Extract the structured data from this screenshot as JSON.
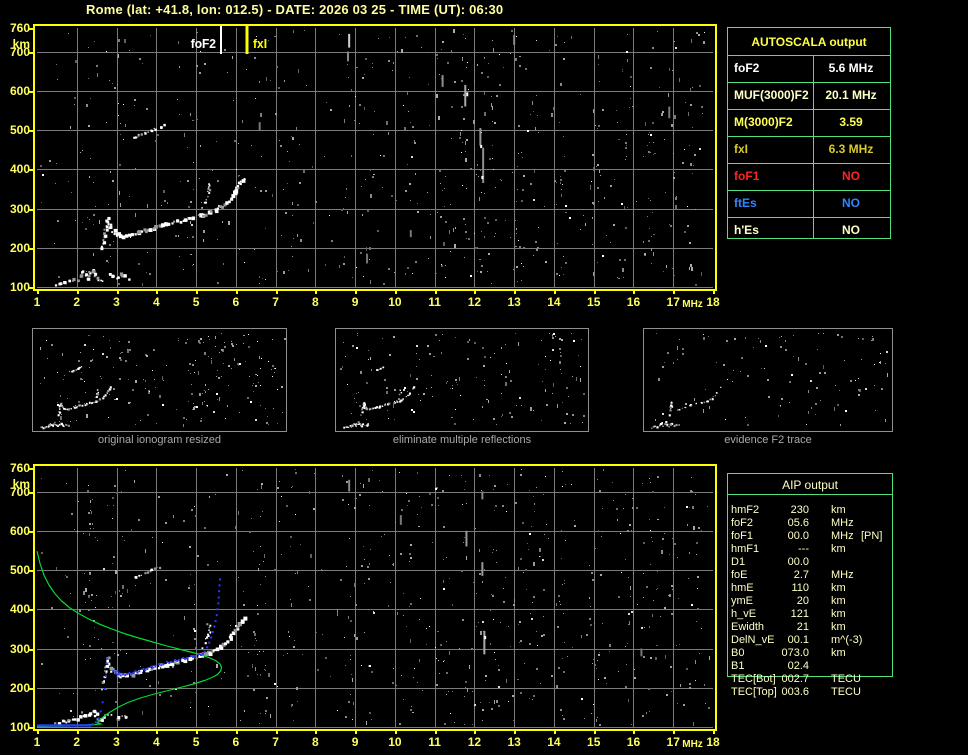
{
  "title": "Rome (lat: +41.8, lon: 012.5) - DATE: 2026 03 25 - TIME (UT): 06:30",
  "colors": {
    "axis_yellow": "#ffff00",
    "label_yellow": "#ffff60",
    "title_yellow": "#ffffa0",
    "bright_yellow": "#ffff44",
    "grid_gray": "#7b7b7b",
    "table_green": "#52e07c",
    "aip_text": "#ffffc4",
    "caption_gray": "#a9a9a9",
    "trace_blue": "#2a3bff",
    "profile_green": "#00dc30",
    "red": "#ff2222",
    "ftes_blue": "#2e86ff",
    "white": "#ffffff",
    "pale_yellow": "#ffffc8",
    "gold_yellow": "#d8ca28"
  },
  "axes": {
    "x_ticks": [
      1,
      2,
      3,
      4,
      5,
      6,
      7,
      8,
      9,
      10,
      11,
      12,
      13,
      14,
      15,
      16,
      17,
      18
    ],
    "x_unit": "MHz",
    "y_ticks": [
      760,
      700,
      600,
      500,
      400,
      300,
      200,
      100
    ],
    "y_unit": "km"
  },
  "top_plot": {
    "markers": [
      {
        "label": "foF2",
        "f": 5.63,
        "color": "#ffffff",
        "width": 2,
        "label_side": "left"
      },
      {
        "label": "fxI",
        "f": 6.28,
        "color": "#ffff00",
        "width": 3,
        "label_side": "right"
      }
    ]
  },
  "thumbnails": [
    {
      "caption": "original ionogram resized"
    },
    {
      "caption": "eliminate multiple reflections"
    },
    {
      "caption": "evidence F2 trace"
    }
  ],
  "autoscala": {
    "header": "AUTOSCALA output",
    "rows": [
      {
        "label": "foF2",
        "value": "5.6 MHz",
        "color": "#ffffff"
      },
      {
        "label": "MUF(3000)F2",
        "value": "20.1 MHz",
        "color": "#ffffc8"
      },
      {
        "label": "M(3000)F2",
        "value": "3.59",
        "color": "#ffff55"
      },
      {
        "label": "fxI",
        "value": "6.3 MHz",
        "color": "#d8ca28"
      },
      {
        "label": "foF1",
        "value": "NO",
        "color": "#ff2222"
      },
      {
        "label": "ftEs",
        "value": "NO",
        "color": "#2e86ff"
      },
      {
        "label": "h'Es",
        "value": "NO",
        "color": "#ffffc8"
      }
    ]
  },
  "aip": {
    "header": "AIP output",
    "rows": [
      {
        "label": "hmF2",
        "value": "230",
        "unit": "km",
        "extra": ""
      },
      {
        "label": "foF2",
        "value": "05.6",
        "unit": "MHz",
        "extra": ""
      },
      {
        "label": "foF1",
        "value": "00.0",
        "unit": "MHz",
        "extra": "[PN]"
      },
      {
        "label": "hmF1",
        "value": "---",
        "unit": "km",
        "extra": ""
      },
      {
        "label": "D1",
        "value": "00.0",
        "unit": "",
        "extra": ""
      },
      {
        "label": "foE",
        "value": "2.7",
        "unit": "MHz",
        "extra": ""
      },
      {
        "label": "hmE",
        "value": "110",
        "unit": "km",
        "extra": ""
      },
      {
        "label": "ymE",
        "value": "20",
        "unit": "km",
        "extra": ""
      },
      {
        "label": "h_vE",
        "value": "121",
        "unit": "km",
        "extra": ""
      },
      {
        "label": "Ewidth",
        "value": "21",
        "unit": "km",
        "extra": ""
      },
      {
        "label": "DelN_vE",
        "value": "00.1",
        "unit": "m^(-3)",
        "extra": ""
      },
      {
        "label": "B0",
        "value": "073.0",
        "unit": "km",
        "extra": ""
      },
      {
        "label": "B1",
        "value": "02.4",
        "unit": "",
        "extra": ""
      },
      {
        "label": "TEC[Bot]",
        "value": "002.7",
        "unit": "TECU",
        "extra": ""
      },
      {
        "label": "TEC[Top]",
        "value": "003.6",
        "unit": "TECU",
        "extra": ""
      }
    ]
  },
  "chart_data": {
    "type": "scatter",
    "title": "Ionogram, Rome, 2026-03-25 06:30 UT",
    "xlabel": "MHz",
    "ylabel": "km",
    "xlim": [
      1,
      18
    ],
    "ylim": [
      100,
      760
    ],
    "grid": true,
    "markers": {
      "foF2_MHz": 5.6,
      "fxI_MHz": 6.3
    },
    "traces": {
      "e_trace": [
        [
          1.45,
          107
        ],
        [
          1.55,
          110
        ],
        [
          1.65,
          113
        ],
        [
          1.78,
          115
        ],
        [
          1.9,
          116
        ],
        [
          2.0,
          118
        ],
        [
          2.05,
          128
        ],
        [
          2.1,
          138
        ],
        [
          2.18,
          130
        ],
        [
          2.25,
          122
        ],
        [
          2.3,
          135
        ],
        [
          2.38,
          142
        ],
        [
          2.45,
          130
        ],
        [
          2.5,
          120
        ],
        [
          2.6,
          118
        ],
        [
          2.7,
          128
        ],
        [
          2.78,
          132
        ],
        [
          2.9,
          126
        ],
        [
          3.0,
          122
        ],
        [
          3.1,
          130
        ],
        [
          3.2,
          127
        ],
        [
          3.3,
          122
        ]
      ],
      "cusp": [
        [
          2.62,
          195
        ],
        [
          2.65,
          212
        ],
        [
          2.68,
          228
        ],
        [
          2.7,
          243
        ],
        [
          2.72,
          256
        ],
        [
          2.74,
          266
        ],
        [
          2.76,
          273
        ],
        [
          2.79,
          262
        ],
        [
          2.82,
          250
        ],
        [
          2.86,
          243
        ]
      ],
      "f_trace": [
        [
          2.9,
          246
        ],
        [
          2.95,
          238
        ],
        [
          3.0,
          232
        ],
        [
          3.08,
          229
        ],
        [
          3.2,
          230
        ],
        [
          3.35,
          233
        ],
        [
          3.5,
          237
        ],
        [
          3.7,
          243
        ],
        [
          3.9,
          249
        ],
        [
          4.1,
          255
        ],
        [
          4.3,
          261
        ],
        [
          4.5,
          266
        ],
        [
          4.7,
          271
        ],
        [
          4.9,
          276
        ],
        [
          5.1,
          281
        ],
        [
          5.3,
          288
        ],
        [
          5.45,
          295
        ],
        [
          5.6,
          303
        ],
        [
          5.72,
          313
        ],
        [
          5.83,
          326
        ],
        [
          5.92,
          340
        ],
        [
          6.0,
          352
        ],
        [
          6.07,
          362
        ],
        [
          6.13,
          370
        ],
        [
          6.18,
          377
        ]
      ],
      "o_tail": [
        [
          4.98,
          274
        ],
        [
          5.06,
          286
        ],
        [
          5.14,
          300
        ],
        [
          5.21,
          315
        ],
        [
          5.27,
          330
        ],
        [
          5.31,
          344
        ],
        [
          5.32,
          356
        ],
        [
          5.28,
          364
        ]
      ],
      "second_hop": [
        [
          3.42,
          480
        ],
        [
          3.55,
          486
        ],
        [
          3.68,
          492
        ],
        [
          3.82,
          497
        ],
        [
          3.95,
          503
        ],
        [
          4.08,
          508
        ],
        [
          4.18,
          513
        ]
      ]
    },
    "profile_green": [
      [
        1.0,
        548
      ],
      [
        1.08,
        515
      ],
      [
        1.18,
        486
      ],
      [
        1.3,
        462
      ],
      [
        1.45,
        440
      ],
      [
        1.62,
        421
      ],
      [
        1.82,
        404
      ],
      [
        2.05,
        389
      ],
      [
        2.3,
        375
      ],
      [
        2.6,
        361
      ],
      [
        2.9,
        349
      ],
      [
        3.2,
        338
      ],
      [
        3.55,
        327
      ],
      [
        3.9,
        317
      ],
      [
        4.25,
        307
      ],
      [
        4.6,
        298
      ],
      [
        4.9,
        290
      ],
      [
        5.15,
        283
      ],
      [
        5.35,
        276
      ],
      [
        5.5,
        269
      ],
      [
        5.6,
        261
      ],
      [
        5.64,
        252
      ],
      [
        5.62,
        243
      ],
      [
        5.54,
        234
      ],
      [
        5.4,
        226
      ],
      [
        5.2,
        218
      ],
      [
        4.95,
        210
      ],
      [
        4.65,
        202
      ],
      [
        4.3,
        193
      ],
      [
        3.95,
        184
      ],
      [
        3.6,
        174
      ],
      [
        3.3,
        163
      ],
      [
        3.05,
        151
      ],
      [
        2.85,
        139
      ],
      [
        2.72,
        130
      ],
      [
        2.62,
        122
      ],
      [
        2.56,
        116
      ],
      [
        2.52,
        111
      ],
      [
        2.6,
        108
      ],
      [
        2.45,
        106
      ],
      [
        2.2,
        105
      ],
      [
        1.9,
        104
      ],
      [
        1.6,
        103
      ],
      [
        1.3,
        102
      ],
      [
        1.0,
        101
      ]
    ],
    "scaled_trace_blue": {
      "base_row": {
        "f0": 1.0,
        "f1": 2.32,
        "km": 104
      },
      "mid_dots": [
        [
          2.4,
          107
        ],
        [
          2.48,
          112
        ],
        [
          2.55,
          122
        ],
        [
          2.6,
          140
        ],
        [
          2.65,
          163
        ],
        [
          2.7,
          197
        ],
        [
          2.73,
          230
        ],
        [
          2.75,
          262
        ],
        [
          2.77,
          275
        ]
      ],
      "steep_dots": [
        [
          5.22,
          292
        ],
        [
          5.28,
          303
        ],
        [
          5.33,
          315
        ],
        [
          5.38,
          328
        ],
        [
          5.42,
          342
        ],
        [
          5.46,
          356
        ],
        [
          5.49,
          370
        ],
        [
          5.52,
          385
        ],
        [
          5.54,
          400
        ],
        [
          5.56,
          415
        ],
        [
          5.57,
          430
        ],
        [
          5.58,
          446
        ],
        [
          5.59,
          461
        ],
        [
          5.6,
          476
        ]
      ]
    },
    "noise": {
      "cluster_freqs": [
        2.35,
        3.0,
        4.9,
        6.6,
        7.4,
        8.85,
        9.3,
        10.4,
        11.2,
        11.8,
        12.2,
        12.5,
        13.1,
        13.5,
        14.2,
        15.1,
        15.8,
        16.4,
        16.9,
        17.5
      ],
      "cluster_ratio": 0.45,
      "top": {
        "seed": 7,
        "gray": 620,
        "bright": 60
      },
      "bottom": {
        "seed": 13,
        "gray": 650,
        "bright": 75
      },
      "thumbs": [
        {
          "seed": 21,
          "gray": 175,
          "bright": 34
        },
        {
          "seed": 22,
          "gray": 135,
          "bright": 26
        },
        {
          "seed": 23,
          "gray": 90,
          "bright": 18
        }
      ]
    },
    "streaks_top": [
      {
        "f": 8.85,
        "km": 745,
        "len": 35,
        "c": "#cfcfcf"
      },
      {
        "f": 8.82,
        "km": 700,
        "len": 25,
        "c": "#8a8a8a"
      },
      {
        "f": 11.2,
        "km": 640,
        "len": 30,
        "c": "#909090"
      },
      {
        "f": 11.77,
        "km": 615,
        "len": 55,
        "c": "#a8a8a8"
      },
      {
        "f": 11.82,
        "km": 596,
        "len": 10,
        "c": "#ffffff"
      },
      {
        "f": 12.15,
        "km": 505,
        "len": 45,
        "c": "#9a9a9a"
      },
      {
        "f": 12.17,
        "km": 462,
        "len": 8,
        "c": "#ffffff"
      },
      {
        "f": 12.22,
        "km": 455,
        "len": 90,
        "c": "#8f8f8f"
      },
      {
        "f": 12.2,
        "km": 383,
        "len": 8,
        "c": "#ffffff"
      },
      {
        "f": 13.0,
        "km": 742,
        "len": 25,
        "c": "#8a8a8a"
      },
      {
        "f": 16.9,
        "km": 560,
        "len": 30,
        "c": "#777777"
      },
      {
        "f": 9.3,
        "km": 185,
        "len": 25,
        "c": "#777777"
      },
      {
        "f": 6.6,
        "km": 520,
        "len": 20,
        "c": "#777777"
      },
      {
        "f": 10.4,
        "km": 245,
        "len": 18,
        "c": "#777777"
      }
    ],
    "streaks_bottom": [
      {
        "f": 11.8,
        "km": 600,
        "len": 40,
        "c": "#999999"
      },
      {
        "f": 12.2,
        "km": 520,
        "len": 35,
        "c": "#999999"
      },
      {
        "f": 12.25,
        "km": 345,
        "len": 60,
        "c": "#aaaaaa"
      },
      {
        "f": 12.27,
        "km": 332,
        "len": 8,
        "c": "#ffffff"
      },
      {
        "f": 8.85,
        "km": 730,
        "len": 30,
        "c": "#888888"
      },
      {
        "f": 12.2,
        "km": 700,
        "len": 20,
        "c": "#888888"
      },
      {
        "f": 10.15,
        "km": 640,
        "len": 25,
        "c": "#777777"
      },
      {
        "f": 16.2,
        "km": 300,
        "len": 20,
        "c": "#777777"
      }
    ]
  }
}
